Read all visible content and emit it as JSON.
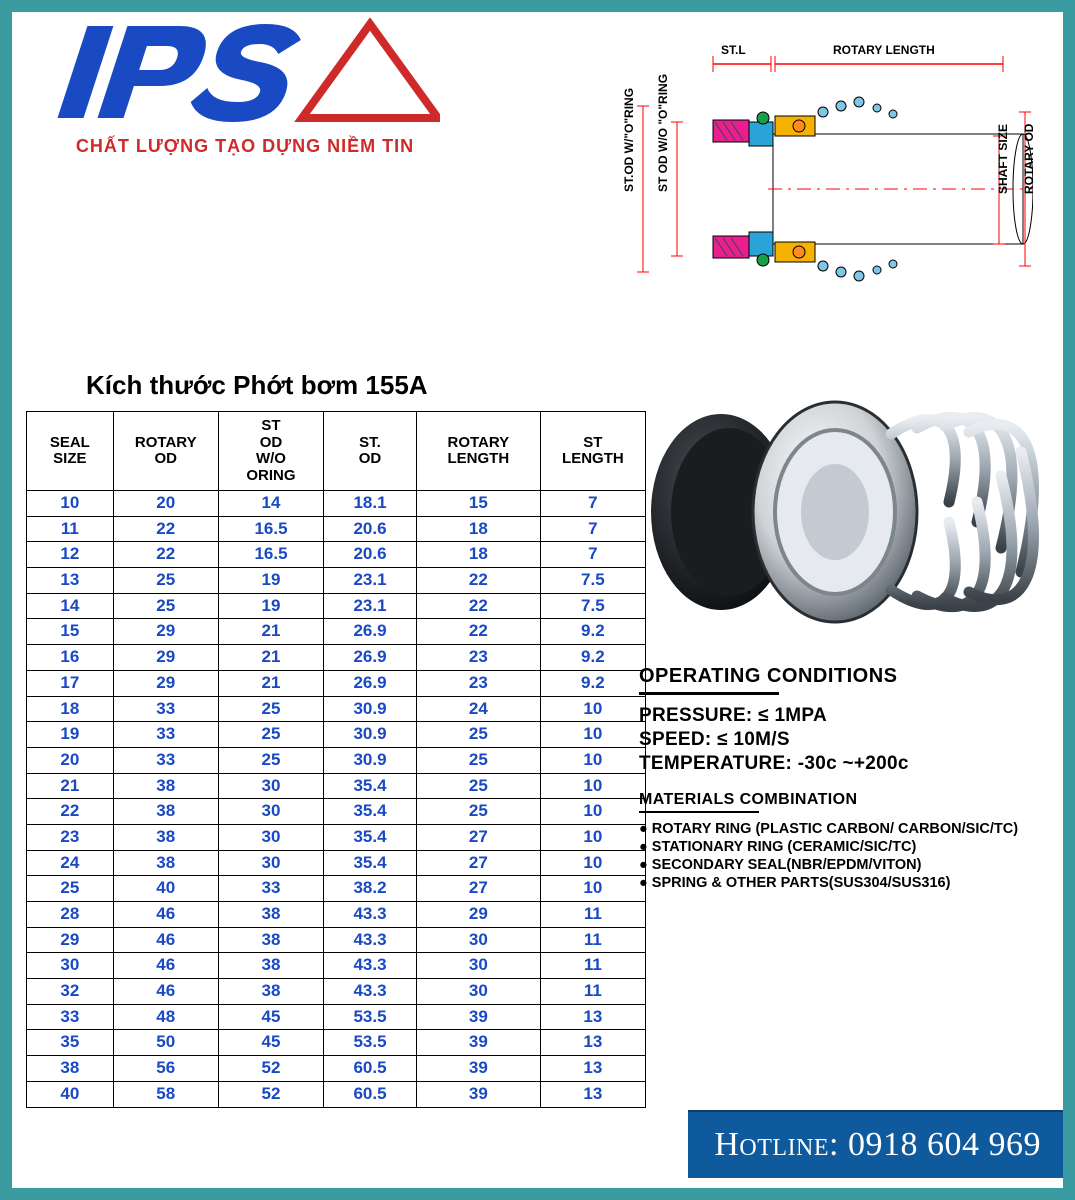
{
  "brand": {
    "name": "IPS",
    "tagline": "CHẤT LƯỢNG TẠO DỰNG NIỀM TIN",
    "logo_colors": {
      "letters": "#1a49c4",
      "triangle": "#cf2a2a",
      "tagline": "#cf2a2a"
    }
  },
  "diagram": {
    "labels": {
      "top_left": "ST.L",
      "top_right": "ROTARY LENGTH",
      "left_outer": "ST.OD W/\"O\"RING",
      "left_inner": "ST OD W/O \"O\"RING",
      "right_inner": "SHAFT SIZE",
      "right_outer": "ROTARY OD"
    },
    "colors": {
      "dimension_line": "#ff0000",
      "body_outline": "#000000",
      "stationary_fill": "#e91e8f",
      "rotary_fill": "#f5b200",
      "carrier_fill": "#2aa3d8",
      "oring_fill": "#1b9e4b",
      "spring_fill": "#7fc7e6",
      "hatch": "#444444"
    }
  },
  "table": {
    "title": "Kích thước Phớt bơm 155A",
    "columns": [
      "SEAL SIZE",
      "ROTARY OD",
      "ST OD W/O ORING",
      "ST. OD",
      "ROTARY LENGTH",
      "ST LENGTH"
    ],
    "rows": [
      [
        10,
        20,
        14,
        18.1,
        15,
        7
      ],
      [
        11,
        22,
        16.5,
        20.6,
        18,
        7
      ],
      [
        12,
        22,
        16.5,
        20.6,
        18,
        7
      ],
      [
        13,
        25,
        19,
        23.1,
        22,
        7.5
      ],
      [
        14,
        25,
        19,
        23.1,
        22,
        7.5
      ],
      [
        15,
        29,
        21,
        26.9,
        22,
        9.2
      ],
      [
        16,
        29,
        21,
        26.9,
        23,
        9.2
      ],
      [
        17,
        29,
        21,
        26.9,
        23,
        9.2
      ],
      [
        18,
        33,
        25,
        30.9,
        24,
        10
      ],
      [
        19,
        33,
        25,
        30.9,
        25,
        10
      ],
      [
        20,
        33,
        25,
        30.9,
        25,
        10
      ],
      [
        21,
        38,
        30,
        35.4,
        25,
        10
      ],
      [
        22,
        38,
        30,
        35.4,
        25,
        10
      ],
      [
        23,
        38,
        30,
        35.4,
        27,
        10
      ],
      [
        24,
        38,
        30,
        35.4,
        27,
        10
      ],
      [
        25,
        40,
        33,
        38.2,
        27,
        10
      ],
      [
        28,
        46,
        38,
        43.3,
        29,
        11
      ],
      [
        29,
        46,
        38,
        43.3,
        30,
        11
      ],
      [
        30,
        46,
        38,
        43.3,
        30,
        11
      ],
      [
        32,
        46,
        38,
        43.3,
        30,
        11
      ],
      [
        33,
        48,
        45,
        53.5,
        39,
        13
      ],
      [
        35,
        50,
        45,
        53.5,
        39,
        13
      ],
      [
        38,
        56,
        52,
        60.5,
        39,
        13
      ],
      [
        40,
        58,
        52,
        60.5,
        39,
        13
      ]
    ],
    "cell_text_color": "#1a49c4",
    "border_color": "#000000"
  },
  "operating_conditions": {
    "heading": "OPERATING CONDITIONS",
    "lines": [
      "PRESSURE: ≤ 1MPA",
      "SPEED: ≤ 10M/S",
      "TEMPERATURE: -30c  ~+200c"
    ]
  },
  "materials": {
    "heading": "MATERIALS COMBINATION",
    "items": [
      "ROTARY RING (PLASTIC CARBON/ CARBON/SIC/TC)",
      "STATIONARY RING (CERAMIC/SIC/TC)",
      "SECONDARY SEAL(NBR/EPDM/VITON)",
      "SPRING & OTHER PARTS(SUS304/SUS316)"
    ]
  },
  "hotline": {
    "label": "Hotline:",
    "number": "0918 604 969",
    "bg": "#0f5a9c",
    "fg": "#ffffff"
  },
  "page_border_color": "#3a9ca0"
}
